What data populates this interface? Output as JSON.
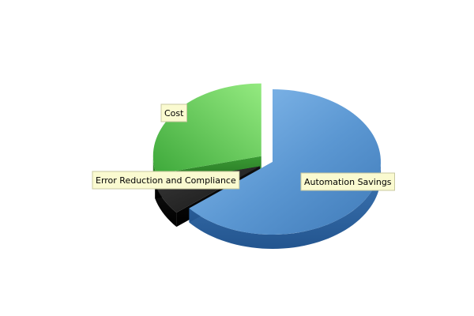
{
  "chart_data": {
    "type": "pie",
    "style": "3d-exploded",
    "title": "",
    "slices": [
      {
        "label": "Automation Savings",
        "value": 64,
        "color": "#5b9bd5",
        "exploded": false
      },
      {
        "label": "Error Reduction and Compliance",
        "value": 7,
        "color": "#1f1f1f",
        "exploded": true
      },
      {
        "label": "Cost",
        "value": 29,
        "color": "#6cd35a",
        "exploded": true
      }
    ]
  }
}
